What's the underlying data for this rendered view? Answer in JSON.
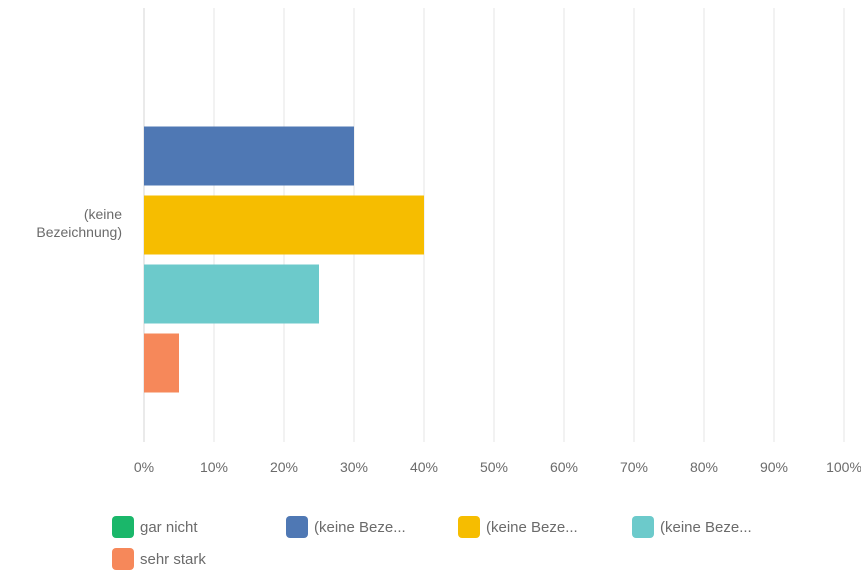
{
  "chart_data": {
    "type": "bar",
    "orientation": "horizontal",
    "categories": [
      "(keine Bezeichnung)"
    ],
    "category_label_lines": [
      "(keine",
      "Bezeichnung)"
    ],
    "series": [
      {
        "name": "gar nicht",
        "values": [
          0
        ],
        "color": "#1ab76a"
      },
      {
        "name": "(keine Beze...",
        "values": [
          30
        ],
        "color": "#4f78b4"
      },
      {
        "name": "(keine Beze...",
        "values": [
          40
        ],
        "color": "#f6bd00"
      },
      {
        "name": "(keine Beze...",
        "values": [
          25
        ],
        "color": "#6ccacb"
      },
      {
        "name": "sehr stark",
        "values": [
          5
        ],
        "color": "#f6885a"
      }
    ],
    "xlim": [
      0,
      100
    ],
    "x_ticks": [
      "0%",
      "10%",
      "20%",
      "30%",
      "40%",
      "50%",
      "60%",
      "70%",
      "80%",
      "90%",
      "100%"
    ],
    "grid": true,
    "legend_position": "bottom"
  }
}
